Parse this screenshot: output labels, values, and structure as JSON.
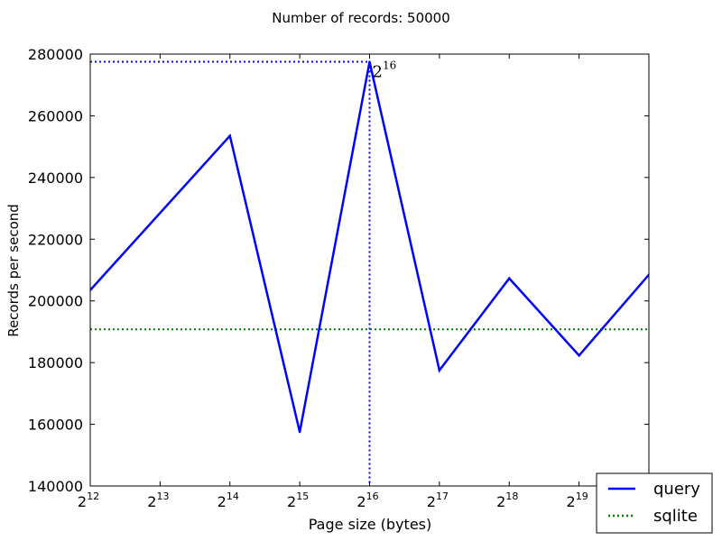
{
  "chart_data": {
    "type": "line",
    "title": "Number of records: 50000",
    "xlabel": "Page size (bytes)",
    "ylabel": "Records per second",
    "ylabel_color": "#0000ff",
    "x_scale": "log2",
    "x_exponents": [
      12,
      13,
      14,
      15,
      16,
      17,
      18,
      19,
      20
    ],
    "x_tick_base": "2",
    "x_tick_exponent_labels": [
      "12",
      "13",
      "14",
      "15",
      "16",
      "17",
      "18",
      "19",
      "20"
    ],
    "xlim_exponents": [
      12,
      20
    ],
    "ylim": [
      140000,
      280000
    ],
    "y_ticks": [
      140000,
      160000,
      180000,
      200000,
      220000,
      240000,
      260000,
      280000
    ],
    "y_tick_labels": [
      "140000",
      "160000",
      "180000",
      "200000",
      "220000",
      "240000",
      "260000",
      "280000"
    ],
    "series": [
      {
        "name": "query",
        "style": "solid",
        "color": "#0000ff",
        "x_exponents": [
          12,
          14,
          15,
          16,
          17,
          18,
          19,
          20
        ],
        "values": [
          203500,
          253500,
          157500,
          277500,
          177500,
          207300,
          182300,
          208500
        ]
      },
      {
        "name": "sqlite",
        "style": "dotted",
        "color": "#008000",
        "constant": 190800
      }
    ],
    "annotation": {
      "base": "2",
      "exponent": "16",
      "x_exponent": 16,
      "y": 277500,
      "guide_color": "#0000ff"
    },
    "legend": {
      "placement": "bottom-right",
      "entries": [
        "query",
        "sqlite"
      ]
    },
    "grid": false
  }
}
